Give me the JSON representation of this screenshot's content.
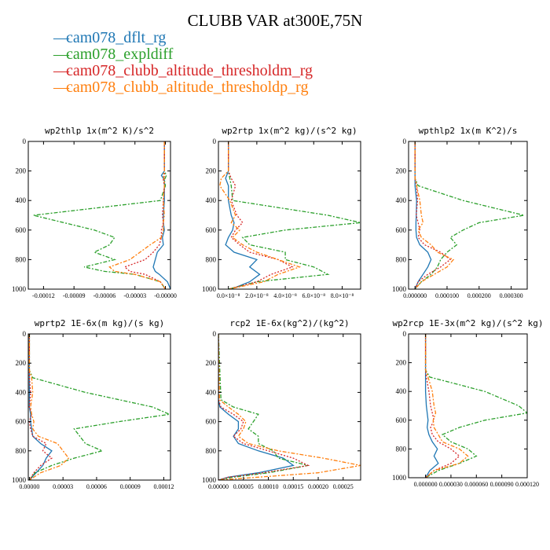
{
  "title": "CLUBB VAR at300E,75N",
  "legend": [
    {
      "name": "cam078_dflt_rg",
      "color": "#1f77b4",
      "dash": "none"
    },
    {
      "name": "cam078_expldiff",
      "color": "#2ca02c",
      "dash": "5,2,2,2"
    },
    {
      "name": "cam078_clubb_altitude_thresholdm_rg",
      "color": "#d62728",
      "dash": "2,2"
    },
    {
      "name": "cam078_clubb_altitude_thresholdp_rg",
      "color": "#ff7f0e",
      "dash": "5,2,2,2"
    }
  ],
  "chart_data": [
    {
      "type": "line",
      "name": "wp2thlp",
      "title": "wp2thlp  1x(m^2 K)/s^2",
      "xlim": [
        -0.000135,
        5e-06
      ],
      "ylim": [
        1000,
        0
      ],
      "xticks": [
        -0.00012,
        -9e-05,
        -6e-05,
        -3e-05,
        0
      ],
      "xticklabels": [
        "-0.00012",
        "-0.00009",
        "-0.00006",
        "-0.00003",
        "-0.00000"
      ],
      "yticks": [
        0,
        200,
        400,
        600,
        800,
        1000
      ],
      "y": [
        0,
        100,
        200,
        230,
        260,
        300,
        400,
        500,
        550,
        600,
        650,
        700,
        750,
        800,
        850,
        880,
        900,
        950,
        1000
      ],
      "series": [
        {
          "name": "cam078_dflt_rg",
          "values": [
            -1e-06,
            -1e-06,
            -1e-06,
            -4e-06,
            -1e-06,
            -1e-06,
            -1e-06,
            -2e-06,
            -2e-06,
            -1e-06,
            -3e-06,
            -2e-06,
            -8e-06,
            -1e-05,
            -1.2e-05,
            -1e-05,
            -6e-06,
            2e-06,
            5e-06
          ]
        },
        {
          "name": "cam078_expldiff",
          "values": [
            -1e-06,
            -1e-06,
            -1e-06,
            1e-06,
            -1e-06,
            0,
            -5e-06,
            -0.00013,
            -0.0001,
            -7e-05,
            -5e-05,
            -5.5e-05,
            -7e-05,
            -5e-05,
            -8e-05,
            -6e-05,
            -3e-05,
            -5e-06,
            0
          ]
        },
        {
          "name": "cam078_clubb_altitude_thresholdm_rg",
          "values": [
            -1e-06,
            -1e-06,
            -1e-06,
            -1e-06,
            -2e-06,
            -1e-06,
            -2e-06,
            -3e-06,
            -2e-06,
            -4e-06,
            -4e-06,
            -6e-06,
            -1.2e-05,
            -2e-05,
            -4e-05,
            -3.5e-05,
            -2e-05,
            -5e-06,
            0
          ]
        },
        {
          "name": "cam078_clubb_altitude_thresholdp_rg",
          "values": [
            -1e-06,
            -1e-06,
            -1e-06,
            -2e-06,
            -1e-06,
            -1e-06,
            -2e-06,
            -1e-06,
            -2e-06,
            -2e-06,
            -4e-06,
            -1.5e-05,
            -2.5e-05,
            -3.5e-05,
            -5.5e-05,
            -5e-05,
            -3e-05,
            -5e-06,
            0
          ]
        }
      ]
    },
    {
      "type": "line",
      "name": "wp2rtp",
      "title": "wp2rtp  1x(m^2 kg)/(s^2 kg)",
      "xlim": [
        -7e-09,
        9.3e-08
      ],
      "ylim": [
        1000,
        0
      ],
      "xticks": [
        0,
        2e-08,
        4e-08,
        6e-08,
        8e-08
      ],
      "xticklabels": [
        "0.0×10⁻⁸",
        "2.0×10⁻⁸",
        "4.0×10⁻⁸",
        "6.0×10⁻⁸",
        "8.0×10⁻⁸"
      ],
      "yticks": [
        0,
        200,
        400,
        600,
        800,
        1000
      ],
      "y": [
        0,
        200,
        250,
        300,
        400,
        500,
        550,
        600,
        650,
        700,
        750,
        800,
        850,
        900,
        950,
        1000
      ],
      "series": [
        {
          "name": "cam078_dflt_rg",
          "values": [
            0,
            0,
            -2e-09,
            0,
            0,
            2e-09,
            4e-09,
            3e-09,
            0,
            -2e-09,
            4e-09,
            2e-08,
            1.5e-08,
            2.2e-08,
            1.5e-08,
            2e-09
          ]
        },
        {
          "name": "cam078_expldiff",
          "values": [
            0,
            0,
            1e-09,
            2e-09,
            3e-09,
            7e-08,
            9.3e-08,
            4e-08,
            1e-08,
            1.5e-08,
            4e-08,
            4e-08,
            6e-08,
            7e-08,
            2e-08,
            0
          ]
        },
        {
          "name": "cam078_clubb_altitude_thresholdm_rg",
          "values": [
            0,
            0,
            2e-09,
            5e-09,
            2e-09,
            6e-09,
            1e-08,
            5e-09,
            2e-09,
            8e-09,
            1.5e-08,
            3.5e-08,
            4.5e-08,
            3e-08,
            2e-08,
            0
          ]
        },
        {
          "name": "cam078_clubb_altitude_thresholdp_rg",
          "values": [
            0,
            0,
            -5e-09,
            -6e-09,
            1e-09,
            5e-09,
            2e-09,
            8e-09,
            3e-09,
            1e-08,
            2e-08,
            3.5e-08,
            5e-08,
            3.5e-08,
            2.5e-08,
            0
          ]
        }
      ]
    },
    {
      "type": "line",
      "name": "wpthlp2",
      "title": "wpthlp2  1x(m K^2)/s",
      "xlim": [
        -2e-05,
        0.00035
      ],
      "ylim": [
        1000,
        0
      ],
      "xticks": [
        0,
        0.0001,
        0.0002,
        0.0003
      ],
      "xticklabels": [
        "0.000000",
        "0.000100",
        "0.000200",
        "0.000300"
      ],
      "yticks": [
        0,
        200,
        400,
        600,
        800,
        1000
      ],
      "y": [
        0,
        250,
        300,
        400,
        500,
        550,
        600,
        650,
        700,
        750,
        800,
        850,
        900,
        950,
        1000
      ],
      "series": [
        {
          "name": "cam078_dflt_rg",
          "values": [
            0,
            0,
            0,
            5e-06,
            4e-06,
            3e-06,
            3e-06,
            5e-06,
            1.5e-05,
            4e-05,
            5e-05,
            4e-05,
            2.5e-05,
            1e-05,
            0
          ]
        },
        {
          "name": "cam078_expldiff",
          "values": [
            0,
            0,
            1e-05,
            0.00015,
            0.00034,
            0.0002,
            0.00015,
            0.00011,
            0.00013,
            0.0001,
            8e-05,
            7e-05,
            5e-05,
            2e-05,
            0
          ]
        },
        {
          "name": "cam078_clubb_altitude_thresholdm_rg",
          "values": [
            0,
            0,
            5e-06,
            8e-06,
            4e-06,
            1e-05,
            1.5e-05,
            1e-05,
            3e-05,
            8e-05,
            0.00011,
            8e-05,
            4e-05,
            1e-05,
            0
          ]
        },
        {
          "name": "cam078_clubb_altitude_thresholdp_rg",
          "values": [
            0,
            0,
            5e-06,
            1.5e-05,
            2e-05,
            2.5e-05,
            1e-05,
            2e-05,
            5e-05,
            7e-05,
            0.00012,
            0.0001,
            6e-05,
            2e-05,
            0
          ]
        }
      ]
    },
    {
      "type": "line",
      "name": "wprtp2",
      "title": "wprtp2  1E-6x(m kg)/(s kg)",
      "xlim": [
        -1e-06,
        0.000126
      ],
      "ylim": [
        1000,
        0
      ],
      "xticks": [
        0,
        3e-05,
        6e-05,
        9e-05,
        0.00012
      ],
      "xticklabels": [
        "0.00000",
        "0.00003",
        "0.00006",
        "0.00009",
        "0.00012"
      ],
      "yticks": [
        0,
        200,
        400,
        600,
        800,
        1000
      ],
      "y": [
        0,
        250,
        300,
        400,
        500,
        550,
        600,
        650,
        700,
        750,
        800,
        850,
        900,
        950,
        1000
      ],
      "series": [
        {
          "name": "cam078_dflt_rg",
          "values": [
            0,
            0,
            0,
            0,
            0,
            1e-06,
            1e-06,
            2e-06,
            3e-06,
            1e-05,
            2e-05,
            1.5e-05,
            1.2e-05,
            6e-06,
            0
          ]
        },
        {
          "name": "cam078_expldiff",
          "values": [
            0,
            0,
            3e-06,
            5e-05,
            0.00011,
            0.000125,
            8e-05,
            4e-05,
            4.5e-05,
            5e-05,
            6.5e-05,
            4e-05,
            2e-05,
            5e-06,
            0
          ]
        },
        {
          "name": "cam078_clubb_altitude_thresholdm_rg",
          "values": [
            0,
            0,
            0,
            1e-06,
            0,
            2e-06,
            0,
            1e-06,
            3e-06,
            1.5e-05,
            1.2e-05,
            2e-05,
            1e-05,
            4e-06,
            0
          ]
        },
        {
          "name": "cam078_clubb_altitude_thresholdp_rg",
          "values": [
            0,
            0,
            2e-06,
            3e-06,
            1e-06,
            2e-06,
            4e-06,
            3e-06,
            8e-06,
            2.5e-05,
            3e-05,
            3.5e-05,
            2.8e-05,
            1e-05,
            0
          ]
        }
      ]
    },
    {
      "type": "line",
      "name": "rcp2",
      "title": "rcp2  1E-6x(kg^2)/(kg^2)",
      "xlim": [
        0,
        0.000285
      ],
      "ylim": [
        1000,
        0
      ],
      "xticks": [
        0,
        5e-05,
        0.0001,
        0.00015,
        0.0002,
        0.00025
      ],
      "xticklabels": [
        "0.00000",
        "0.00005",
        "0.00010",
        "0.00015",
        "0.00020",
        "0.00025"
      ],
      "yticks": [
        0,
        200,
        400,
        600,
        800,
        1000
      ],
      "y": [
        0,
        450,
        500,
        550,
        600,
        650,
        700,
        750,
        800,
        850,
        900,
        950,
        980,
        1000
      ],
      "series": [
        {
          "name": "cam078_dflt_rg",
          "values": [
            0,
            0,
            3e-06,
            2e-05,
            4e-05,
            4e-05,
            3e-05,
            4e-05,
            8e-05,
            0.00013,
            0.00015,
            8e-05,
            2e-05,
            0
          ]
        },
        {
          "name": "cam078_expldiff",
          "values": [
            0,
            5e-06,
            3e-05,
            8e-05,
            7e-05,
            6e-05,
            8e-05,
            8e-05,
            0.00011,
            0.00012,
            0.00018,
            0.0001,
            3e-05,
            0
          ]
        },
        {
          "name": "cam078_clubb_altitude_thresholdm_rg",
          "values": [
            0,
            0,
            5e-06,
            3e-05,
            5e-05,
            4.5e-05,
            3e-05,
            5e-05,
            0.0001,
            0.00015,
            0.00018,
            9e-05,
            2e-05,
            0
          ]
        },
        {
          "name": "cam078_clubb_altitude_thresholdp_rg",
          "values": [
            0,
            2e-06,
            2e-05,
            4e-05,
            5.5e-05,
            5e-05,
            4e-05,
            6e-05,
            0.00012,
            0.00021,
            0.000285,
            0.0002,
            8e-05,
            0
          ]
        }
      ]
    },
    {
      "type": "line",
      "name": "wp2rcp",
      "title": "wp2rcp  1E-3x(m^2 kg)/(s^2 kg)",
      "xlim": [
        -2e-05,
        0.00012
      ],
      "ylim": [
        1000,
        0
      ],
      "xticks": [
        0,
        3e-05,
        6e-05,
        9e-05,
        0.00012
      ],
      "xticklabels": [
        "0.000000",
        "0.000030",
        "0.000060",
        "0.000090",
        "0.000120"
      ],
      "yticks": [
        0,
        200,
        400,
        600,
        800,
        1000
      ],
      "y": [
        0,
        250,
        300,
        400,
        500,
        550,
        600,
        650,
        700,
        750,
        800,
        850,
        900,
        950,
        1000
      ],
      "series": [
        {
          "name": "cam078_dflt_rg",
          "values": [
            0,
            0,
            0,
            0,
            1e-06,
            2e-06,
            3e-06,
            2e-06,
            4e-06,
            8e-06,
            1.4e-05,
            1e-05,
            1.5e-05,
            5e-06,
            0
          ]
        },
        {
          "name": "cam078_expldiff",
          "values": [
            0,
            0,
            5e-06,
            7e-05,
            0.00011,
            0.00012,
            7e-05,
            4e-05,
            2e-05,
            3e-05,
            5e-05,
            6e-05,
            4e-05,
            1.5e-05,
            0
          ]
        },
        {
          "name": "cam078_clubb_altitude_thresholdm_rg",
          "values": [
            0,
            0,
            1e-06,
            4e-06,
            6e-06,
            8e-06,
            1e-05,
            6e-06,
            8e-06,
            1.5e-05,
            3e-05,
            4e-05,
            3e-05,
            1e-05,
            0
          ]
        },
        {
          "name": "cam078_clubb_altitude_thresholdp_rg",
          "values": [
            0,
            0,
            3e-06,
            8e-06,
            1e-05,
            1.2e-05,
            9e-06,
            1e-05,
            1.5e-05,
            2e-05,
            4e-05,
            5e-05,
            4e-05,
            1e-05,
            0
          ]
        }
      ]
    }
  ]
}
